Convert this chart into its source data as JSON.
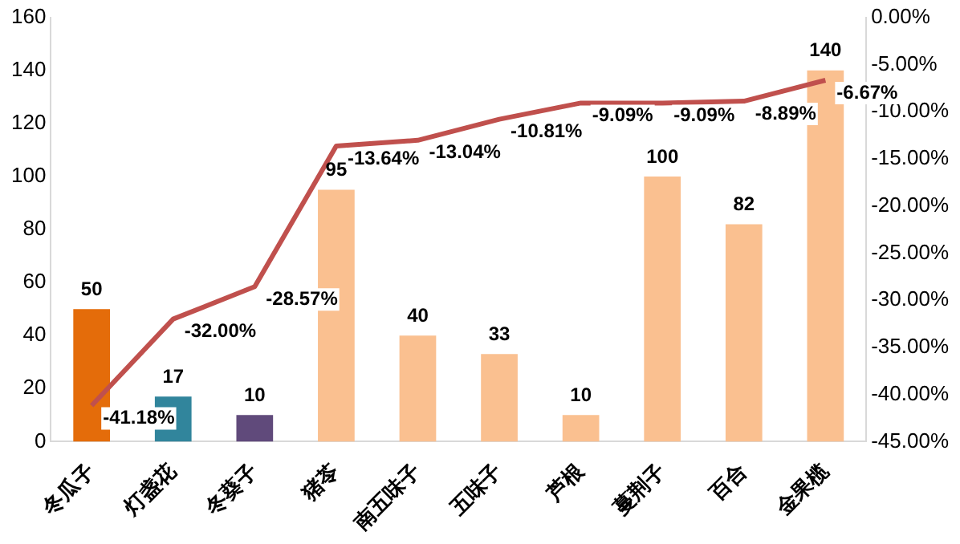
{
  "chart_data": {
    "type": "bar",
    "categories": [
      "冬瓜子",
      "灯盏花",
      "冬葵子",
      "猪苓",
      "南五味子",
      "五味子",
      "芦根",
      "蔓荆子",
      "百合",
      "金果榄"
    ],
    "series": [
      {
        "colors": [
          "#e46c0a",
          "#31859c",
          "#604a7b",
          "#fac090",
          "#fac090",
          "#fac090",
          "#fac090",
          "#fac090",
          "#fac090",
          "#fac090"
        ],
        "values": [
          50,
          17,
          10,
          95,
          40,
          33,
          10,
          100,
          82,
          140
        ],
        "value_labels": [
          "50",
          "17",
          "10",
          "95",
          "40",
          "33",
          "10",
          "100",
          "82",
          "140"
        ]
      },
      {
        "type": "line",
        "axis": "y2",
        "color": "#c0504d",
        "values": [
          -41.18,
          -32.0,
          -28.57,
          -13.64,
          -13.04,
          -10.81,
          -9.09,
          -9.09,
          -8.89,
          -6.67
        ],
        "value_labels": [
          "-41.18%",
          "-32.00%",
          "-28.57%",
          "-13.64%",
          "-13.04%",
          "-10.81%",
          "-9.09%",
          "-9.09%",
          "-8.89%",
          "-6.67%"
        ]
      }
    ],
    "ylim": [
      0,
      160
    ],
    "yticks": [
      0,
      20,
      40,
      60,
      80,
      100,
      120,
      140,
      160
    ],
    "y2lim": [
      -45,
      0
    ],
    "y2ticks": [
      {
        "value": 0,
        "label": "0.00%"
      },
      {
        "value": -5,
        "label": "-5.00%"
      },
      {
        "value": -10,
        "label": "-10.00%"
      },
      {
        "value": -15,
        "label": "-15.00%"
      },
      {
        "value": -20,
        "label": "-20.00%"
      },
      {
        "value": -25,
        "label": "-25.00%"
      },
      {
        "value": -30,
        "label": "-30.00%"
      },
      {
        "value": -35,
        "label": "-35.00%"
      },
      {
        "value": -40,
        "label": "-40.00%"
      },
      {
        "value": -45,
        "label": "-45.00%"
      }
    ],
    "grid": false,
    "legend": false,
    "marker": "none",
    "line_style": "solid"
  }
}
